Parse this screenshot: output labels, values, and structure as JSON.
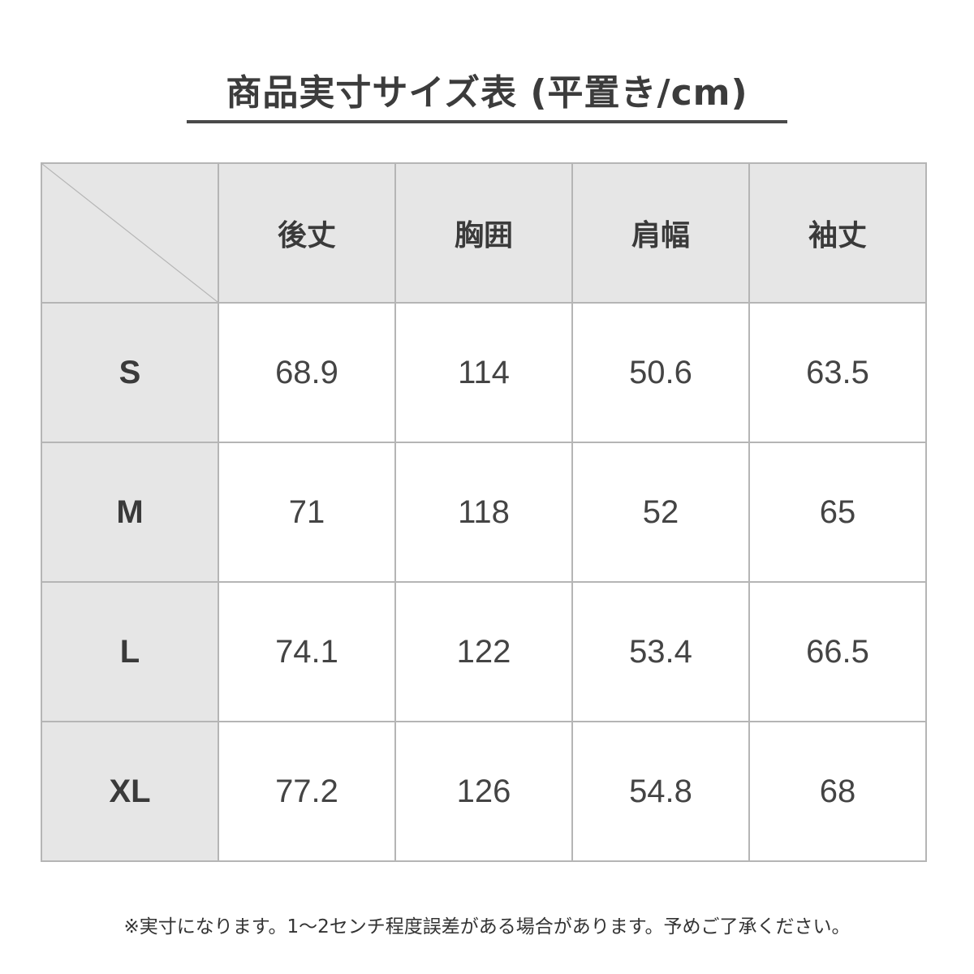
{
  "title": "商品実寸サイズ表 (平置き/cm)",
  "columns": [
    "後丈",
    "胸囲",
    "肩幅",
    "袖丈"
  ],
  "rows": [
    {
      "size": "S",
      "values": [
        "68.9",
        "114",
        "50.6",
        "63.5"
      ]
    },
    {
      "size": "M",
      "values": [
        "71",
        "118",
        "52",
        "65"
      ]
    },
    {
      "size": "L",
      "values": [
        "74.1",
        "122",
        "53.4",
        "66.5"
      ]
    },
    {
      "size": "XL",
      "values": [
        "77.2",
        "126",
        "54.8",
        "68"
      ]
    }
  ],
  "note": "※実寸になります。1〜2センチ程度誤差がある場合があります。予めご了承ください。",
  "colors": {
    "header_bg": "#e6e6e6",
    "border": "#b5b5b5",
    "text": "#444444"
  }
}
